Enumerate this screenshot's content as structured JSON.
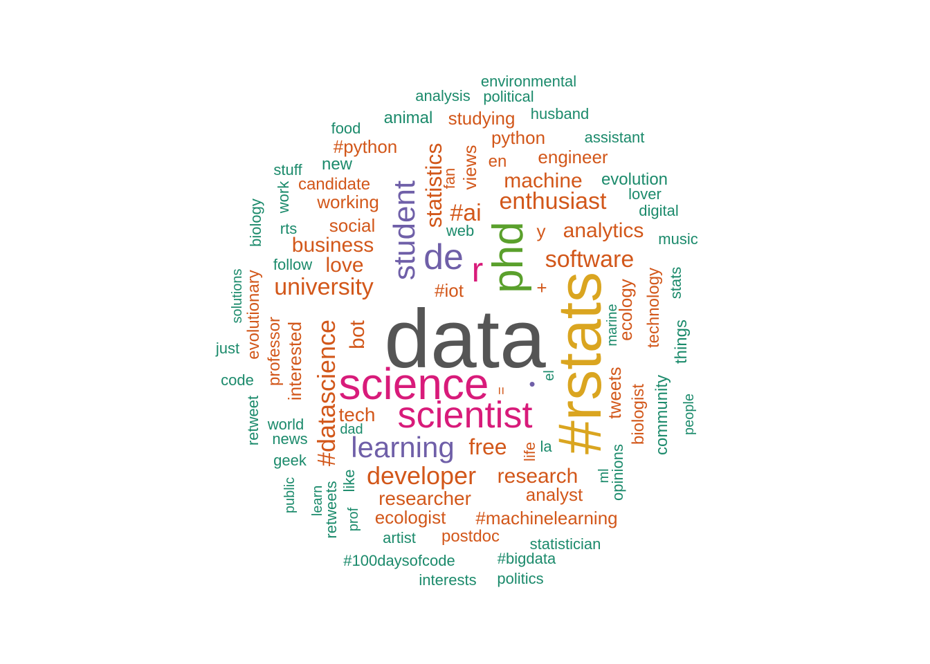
{
  "words": [
    {
      "text": "data",
      "size": 5,
      "color": "gray"
    },
    {
      "text": "#rstats",
      "size": 5,
      "color": "gold"
    },
    {
      "text": "science",
      "size": 4,
      "color": "magenta"
    },
    {
      "text": "scientist",
      "size": 4,
      "color": "magenta"
    },
    {
      "text": "phd",
      "size": 4,
      "color": "green"
    },
    {
      "text": "student",
      "size": 4,
      "color": "purple"
    },
    {
      "text": "de",
      "size": 3,
      "color": "purple"
    },
    {
      "text": "learning",
      "size": 3,
      "color": "purple"
    },
    {
      "text": "r",
      "size": 3,
      "color": "magenta"
    },
    {
      "text": "developer",
      "size": 2,
      "color": "orange"
    },
    {
      "text": "university",
      "size": 2,
      "color": "orange"
    },
    {
      "text": "#datascience",
      "size": 2,
      "color": "orange"
    },
    {
      "text": "software",
      "size": 2,
      "color": "orange"
    },
    {
      "text": "enthusiast",
      "size": 2,
      "color": "orange"
    },
    {
      "text": "analytics",
      "size": 2,
      "color": "orange"
    },
    {
      "text": "research",
      "size": 2,
      "color": "orange"
    },
    {
      "text": "researcher",
      "size": 2,
      "color": "orange"
    },
    {
      "text": "business",
      "size": 2,
      "color": "orange"
    },
    {
      "text": "#ai",
      "size": 2,
      "color": "orange"
    },
    {
      "text": "statistics",
      "size": 2,
      "color": "orange"
    },
    {
      "text": "bot",
      "size": 2,
      "color": "orange"
    },
    {
      "text": "free",
      "size": 2,
      "color": "orange"
    },
    {
      "text": "machine",
      "size": 2,
      "color": "orange"
    },
    {
      "text": "love",
      "size": 2,
      "color": "orange"
    },
    {
      "text": "tech",
      "size": 2,
      "color": "orange"
    },
    {
      "text": "engineer",
      "size": 1,
      "color": "orange"
    },
    {
      "text": "working",
      "size": 1,
      "color": "orange"
    },
    {
      "text": "social",
      "size": 1,
      "color": "orange"
    },
    {
      "text": "ecologist",
      "size": 1,
      "color": "orange"
    },
    {
      "text": "#machinelearning",
      "size": 1,
      "color": "orange"
    },
    {
      "text": "analyst",
      "size": 1,
      "color": "orange"
    },
    {
      "text": "postdoc",
      "size": 1,
      "color": "orange"
    },
    {
      "text": "studying",
      "size": 1,
      "color": "orange"
    },
    {
      "text": "python",
      "size": 1,
      "color": "orange"
    },
    {
      "text": "#python",
      "size": 1,
      "color": "orange"
    },
    {
      "text": "candidate",
      "size": 1,
      "color": "orange"
    },
    {
      "text": "interested",
      "size": 1,
      "color": "orange"
    },
    {
      "text": "professor",
      "size": 1,
      "color": "orange"
    },
    {
      "text": "evolutionary",
      "size": 1,
      "color": "orange"
    },
    {
      "text": "views",
      "size": 1,
      "color": "orange"
    },
    {
      "text": "fan",
      "size": 1,
      "color": "orange"
    },
    {
      "text": "en",
      "size": 1,
      "color": "orange"
    },
    {
      "text": "y",
      "size": 1,
      "color": "orange"
    },
    {
      "text": "+",
      "size": 1,
      "color": "orange"
    },
    {
      "text": "#iot",
      "size": 1,
      "color": "orange"
    },
    {
      "text": "ecology",
      "size": 1,
      "color": "orange"
    },
    {
      "text": "technology",
      "size": 1,
      "color": "orange"
    },
    {
      "text": "tweets",
      "size": 1,
      "color": "orange"
    },
    {
      "text": "biologist",
      "size": 1,
      "color": "orange"
    },
    {
      "text": "life",
      "size": 1,
      "color": "orange"
    },
    {
      "text": "environmental",
      "size": 0,
      "color": "teal"
    },
    {
      "text": "analysis",
      "size": 0,
      "color": "teal"
    },
    {
      "text": "political",
      "size": 0,
      "color": "teal"
    },
    {
      "text": "husband",
      "size": 0,
      "color": "teal"
    },
    {
      "text": "animal",
      "size": 0,
      "color": "teal"
    },
    {
      "text": "food",
      "size": 0,
      "color": "teal"
    },
    {
      "text": "assistant",
      "size": 0,
      "color": "teal"
    },
    {
      "text": "new",
      "size": 0,
      "color": "teal"
    },
    {
      "text": "stuff",
      "size": 0,
      "color": "teal"
    },
    {
      "text": "work",
      "size": 0,
      "color": "teal"
    },
    {
      "text": "evolution",
      "size": 0,
      "color": "teal"
    },
    {
      "text": "lover",
      "size": 0,
      "color": "teal"
    },
    {
      "text": "digital",
      "size": 0,
      "color": "teal"
    },
    {
      "text": "music",
      "size": 0,
      "color": "teal"
    },
    {
      "text": "biology",
      "size": 0,
      "color": "teal"
    },
    {
      "text": "rts",
      "size": 0,
      "color": "teal"
    },
    {
      "text": "web",
      "size": 0,
      "color": "teal"
    },
    {
      "text": "follow",
      "size": 0,
      "color": "teal"
    },
    {
      "text": "solutions",
      "size": 0,
      "color": "teal"
    },
    {
      "text": "just",
      "size": 0,
      "color": "teal"
    },
    {
      "text": "code",
      "size": 0,
      "color": "teal"
    },
    {
      "text": "retweet",
      "size": 0,
      "color": "teal"
    },
    {
      "text": "world",
      "size": 0,
      "color": "teal"
    },
    {
      "text": "news",
      "size": 0,
      "color": "teal"
    },
    {
      "text": "dad",
      "size": 0,
      "color": "teal"
    },
    {
      "text": "geek",
      "size": 0,
      "color": "teal"
    },
    {
      "text": "public",
      "size": 0,
      "color": "teal"
    },
    {
      "text": "learn",
      "size": 0,
      "color": "teal"
    },
    {
      "text": "retweets",
      "size": 0,
      "color": "teal"
    },
    {
      "text": "prof",
      "size": 0,
      "color": "teal"
    },
    {
      "text": "like",
      "size": 0,
      "color": "teal"
    },
    {
      "text": "artist",
      "size": 0,
      "color": "teal"
    },
    {
      "text": "#100daysofcode",
      "size": 0,
      "color": "teal"
    },
    {
      "text": "interests",
      "size": 0,
      "color": "teal"
    },
    {
      "text": "#bigdata",
      "size": 0,
      "color": "teal"
    },
    {
      "text": "politics",
      "size": 0,
      "color": "teal"
    },
    {
      "text": "statistician",
      "size": 0,
      "color": "teal"
    },
    {
      "text": "opinions",
      "size": 0,
      "color": "teal"
    },
    {
      "text": "ml",
      "size": 0,
      "color": "teal"
    },
    {
      "text": "la",
      "size": 0,
      "color": "teal"
    },
    {
      "text": "el",
      "size": 0,
      "color": "teal"
    },
    {
      "text": "marine",
      "size": 0,
      "color": "teal"
    },
    {
      "text": "community",
      "size": 0,
      "color": "teal"
    },
    {
      "text": "things",
      "size": 0,
      "color": "teal"
    },
    {
      "text": "stats",
      "size": 0,
      "color": "teal"
    },
    {
      "text": "people",
      "size": 0,
      "color": "teal"
    },
    {
      "text": "•",
      "size": 2,
      "color": "purple"
    },
    {
      "text": "=",
      "size": 1,
      "color": "orange"
    }
  ],
  "palette": {
    "gray": "#555555",
    "gold": "#DAA520",
    "magenta": "#D81B7A",
    "green": "#5AA02C",
    "purple": "#6F5FA8",
    "orange": "#D2571A",
    "teal": "#1B8A6B"
  }
}
